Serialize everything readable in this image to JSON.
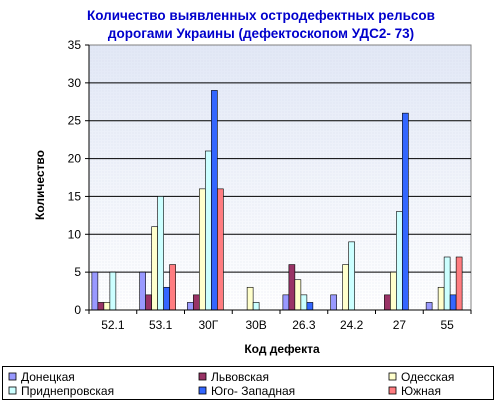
{
  "chart_data": {
    "type": "bar",
    "title": "Количество выявленных остродефектных рельсов дорогами Украины (дефектоскопом УДС2- 73)",
    "title_lines": [
      "Количество выявленных остродефектных рельсов",
      "дорогами Украины (дефектоскопом УДС2- 73)"
    ],
    "xlabel": "Код дефекта",
    "ylabel": "Количество",
    "ylim": [
      0,
      35
    ],
    "yticks": [
      0,
      5,
      10,
      15,
      20,
      25,
      30,
      35
    ],
    "grid": true,
    "legend_position": "bottom",
    "categories": [
      "52.1",
      "53.1",
      "30Г",
      "30В",
      "26.3",
      "24.2",
      "27",
      "55"
    ],
    "series": [
      {
        "name": "Донецкая",
        "color": "#9999ff",
        "values": [
          5,
          5,
          1,
          0,
          2,
          2,
          0,
          1
        ]
      },
      {
        "name": "Львовская",
        "color": "#993366",
        "values": [
          1,
          2,
          2,
          0,
          6,
          0,
          2,
          0
        ]
      },
      {
        "name": "Одесская",
        "color": "#ffffcc",
        "values": [
          1,
          11,
          16,
          3,
          4,
          6,
          5,
          3
        ]
      },
      {
        "name": "Приднепровская",
        "color": "#ccffff",
        "values": [
          5,
          15,
          21,
          1,
          2,
          9,
          13,
          7
        ]
      },
      {
        "name": "Юго- Западная",
        "color": "#3366ff",
        "values": [
          0,
          3,
          29,
          0,
          1,
          0,
          26,
          2
        ]
      },
      {
        "name": "Южная",
        "color": "#ff7c80",
        "values": [
          0,
          6,
          16,
          0,
          0,
          0,
          0,
          7
        ]
      }
    ]
  },
  "colors": {
    "plot_background_top": "#e4e9f7",
    "title": "#0000cc"
  }
}
